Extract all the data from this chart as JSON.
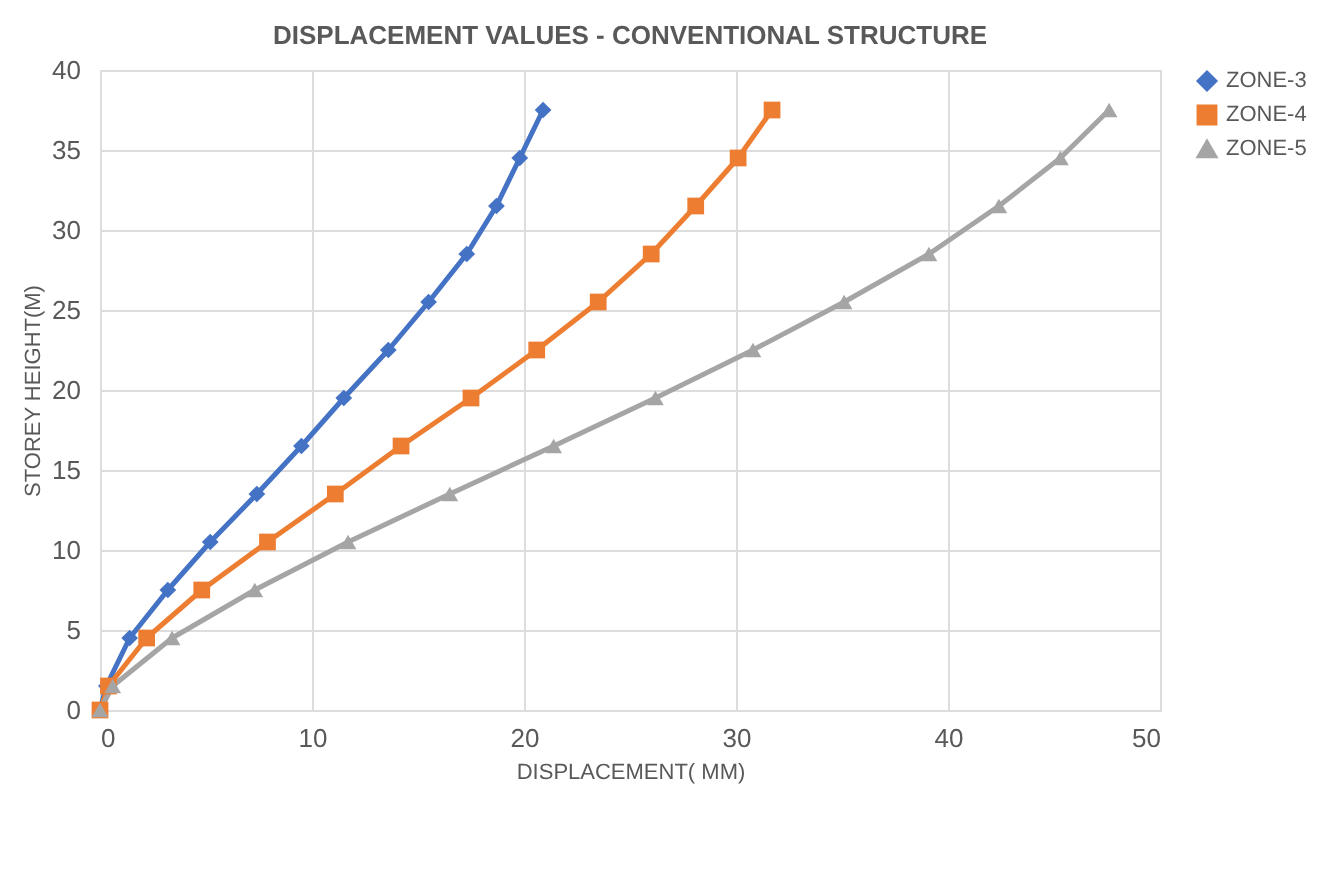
{
  "chart_data": {
    "type": "line",
    "title": "DISPLACEMENT VALUES - CONVENTIONAL STRUCTURE",
    "xlabel": "DISPLACEMENT( MM)",
    "ylabel": "STOREY HEIGHT(M)",
    "xlim": [
      0,
      50
    ],
    "xticks": [
      0,
      10,
      20,
      30,
      40,
      50
    ],
    "ylim": [
      0,
      40
    ],
    "yticks": [
      0,
      5,
      10,
      15,
      20,
      25,
      30,
      35,
      40
    ],
    "grid": true,
    "legend": "right",
    "series": [
      {
        "name": "ZONE-3",
        "color": "#4472c4",
        "marker": "diamond",
        "x": [
          0,
          0.3,
          1.4,
          3.2,
          5.2,
          7.4,
          9.5,
          11.5,
          13.6,
          15.5,
          17.3,
          18.7,
          19.8,
          20.9
        ],
        "values": [
          0,
          1.5,
          4.5,
          7.5,
          10.5,
          13.5,
          16.5,
          19.5,
          22.5,
          25.5,
          28.5,
          31.5,
          34.5,
          37.5
        ]
      },
      {
        "name": "ZONE-4",
        "color": "#ed7d31",
        "marker": "square",
        "x": [
          0,
          0.4,
          2.2,
          4.8,
          7.9,
          11.1,
          14.2,
          17.5,
          20.6,
          23.5,
          26.0,
          28.1,
          30.1,
          31.7
        ],
        "values": [
          0,
          1.5,
          4.5,
          7.5,
          10.5,
          13.5,
          16.5,
          19.5,
          22.5,
          25.5,
          28.5,
          31.5,
          34.5,
          37.5
        ]
      },
      {
        "name": "ZONE-5",
        "color": "#a5a5a5",
        "marker": "triangle",
        "x": [
          0,
          0.6,
          3.4,
          7.3,
          11.7,
          16.5,
          21.4,
          26.2,
          30.8,
          35.1,
          39.1,
          42.4,
          45.3,
          47.6
        ],
        "values": [
          0,
          1.5,
          4.5,
          7.5,
          10.5,
          13.5,
          16.5,
          19.5,
          22.5,
          25.5,
          28.5,
          31.5,
          34.5,
          37.5
        ]
      }
    ]
  }
}
